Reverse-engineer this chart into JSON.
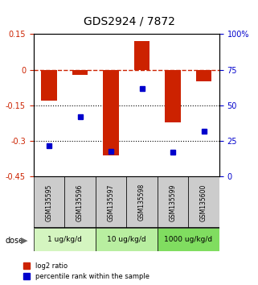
{
  "title": "GDS2924 / 7872",
  "samples": [
    "GSM135595",
    "GSM135596",
    "GSM135597",
    "GSM135598",
    "GSM135599",
    "GSM135600"
  ],
  "log2_ratio": [
    -0.13,
    -0.02,
    -0.36,
    0.12,
    -0.22,
    -0.05
  ],
  "percentile_rank": [
    22,
    42,
    18,
    62,
    17,
    32
  ],
  "dose_groups": [
    {
      "label": "1 ug/kg/d",
      "samples": [
        0,
        1
      ],
      "color": "#d4f5c0"
    },
    {
      "label": "10 ug/kg/d",
      "samples": [
        2,
        3
      ],
      "color": "#b8eea0"
    },
    {
      "label": "1000 ug/kg/d",
      "samples": [
        4,
        5
      ],
      "color": "#80dd60"
    }
  ],
  "ylim_left": [
    -0.45,
    0.15
  ],
  "ylim_right": [
    0,
    100
  ],
  "yticks_left": [
    0.15,
    0,
    -0.15,
    -0.3,
    -0.45
  ],
  "yticks_right": [
    100,
    75,
    50,
    25,
    0
  ],
  "hlines": [
    0,
    -0.15,
    -0.3
  ],
  "bar_color": "#cc2200",
  "dot_color": "#0000cc",
  "zero_line_color": "#cc2200",
  "zero_line_style": "--",
  "hline_color": "black",
  "hline_style": ":",
  "sample_box_color": "#cccccc",
  "bar_width": 0.5
}
